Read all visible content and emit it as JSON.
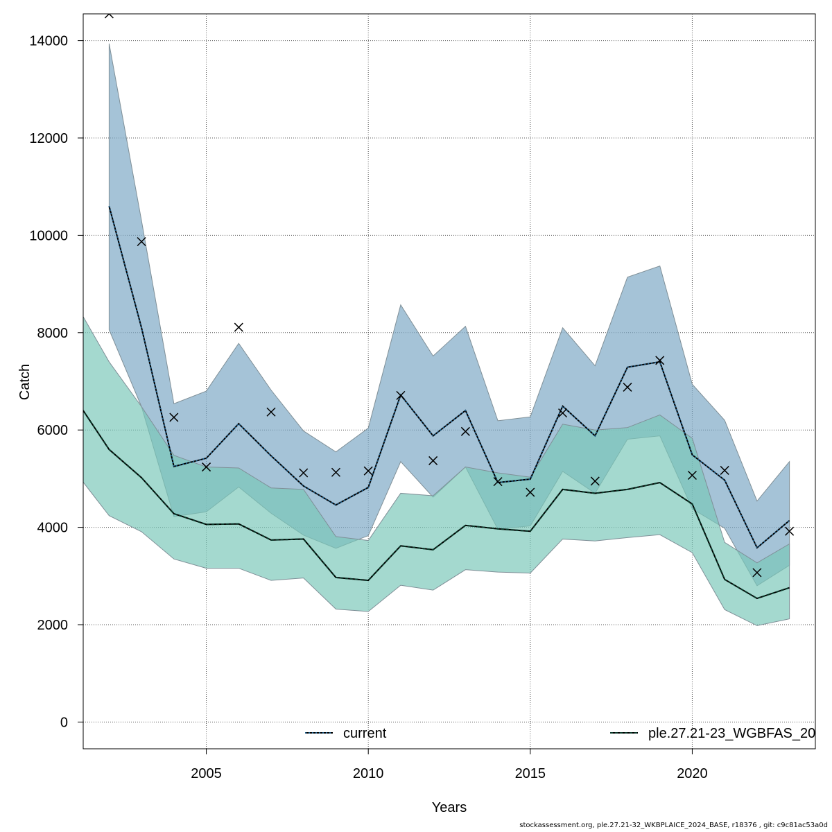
{
  "chart_data": {
    "type": "line",
    "xlabel": "Years",
    "ylabel": "Catch",
    "xlim": [
      2001.2,
      2023.8
    ],
    "ylim": [
      -550,
      14550
    ],
    "x_ticks": [
      2005,
      2010,
      2015,
      2020
    ],
    "y_ticks": [
      0,
      2000,
      4000,
      6000,
      8000,
      10000,
      12000,
      14000
    ],
    "grid": true,
    "legend_position": "bottom",
    "series": [
      {
        "name": "current",
        "line_style": "dotted",
        "line_color": "#1f5f8b",
        "band_color": "#7ba7c4",
        "x": [
          2002,
          2003,
          2004,
          2005,
          2006,
          2007,
          2008,
          2009,
          2010,
          2011,
          2012,
          2013,
          2014,
          2015,
          2016,
          2017,
          2018,
          2019,
          2020,
          2021,
          2022,
          2023
        ],
        "values": [
          10600,
          8100,
          5250,
          5420,
          6130,
          5470,
          4850,
          4460,
          4820,
          6720,
          5880,
          6400,
          4920,
          4990,
          6490,
          5880,
          7290,
          7400,
          5490,
          4970,
          3580,
          4140
        ],
        "lower": [
          8060,
          6480,
          4220,
          4320,
          4830,
          4290,
          3840,
          3570,
          3830,
          5350,
          4620,
          5240,
          3960,
          4030,
          5150,
          4700,
          5810,
          5880,
          4380,
          3980,
          2800,
          3220
        ],
        "upper": [
          13940,
          10300,
          6540,
          6800,
          7780,
          6820,
          5980,
          5550,
          6040,
          8570,
          7520,
          8130,
          6190,
          6270,
          8100,
          7320,
          9140,
          9370,
          6940,
          6200,
          4540,
          5350
        ]
      },
      {
        "name": "ple.27.21-23_WGBFAS_20",
        "line_style": "dashed",
        "line_color": "#0a3a2a",
        "band_color": "#79c7b8",
        "x": [
          2001,
          2002,
          2003,
          2004,
          2005,
          2006,
          2007,
          2008,
          2009,
          2010,
          2011,
          2012,
          2013,
          2014,
          2015,
          2016,
          2017,
          2018,
          2019,
          2020,
          2021,
          2022,
          2023
        ],
        "values": [
          6600,
          5600,
          5020,
          4280,
          4060,
          4070,
          3740,
          3760,
          2970,
          2910,
          3620,
          3540,
          4040,
          3970,
          3920,
          4780,
          4700,
          4780,
          4920,
          4480,
          2930,
          2540,
          2760
        ],
        "lower": [
          5100,
          4240,
          3910,
          3350,
          3160,
          3160,
          2910,
          2960,
          2320,
          2270,
          2810,
          2710,
          3130,
          3080,
          3060,
          3760,
          3720,
          3790,
          3850,
          3480,
          2310,
          1980,
          2120
        ],
        "upper": [
          8560,
          7400,
          6480,
          5480,
          5240,
          5220,
          4810,
          4780,
          3810,
          3730,
          4700,
          4650,
          5240,
          5120,
          5030,
          6120,
          6000,
          6050,
          6310,
          5830,
          3690,
          3270,
          3660
        ]
      }
    ],
    "observations": {
      "marker": "x",
      "x": [
        2002,
        2003,
        2004,
        2005,
        2006,
        2007,
        2008,
        2009,
        2010,
        2011,
        2012,
        2013,
        2014,
        2015,
        2016,
        2017,
        2018,
        2019,
        2020,
        2021,
        2022,
        2023
      ],
      "values": [
        14550,
        9870,
        6260,
        5240,
        8110,
        6370,
        5120,
        5130,
        5160,
        6710,
        5370,
        5970,
        4940,
        4720,
        6350,
        4950,
        6880,
        7430,
        5070,
        5170,
        3070,
        3920
      ]
    },
    "legend": [
      {
        "label": "current"
      },
      {
        "label": "ple.27.21-23_WGBFAS_20"
      }
    ]
  },
  "footer": "stockassessment.org, ple.27.21-32_WKBPLAICE_2024_BASE, r18376 , git: c9c81ac53a0d"
}
